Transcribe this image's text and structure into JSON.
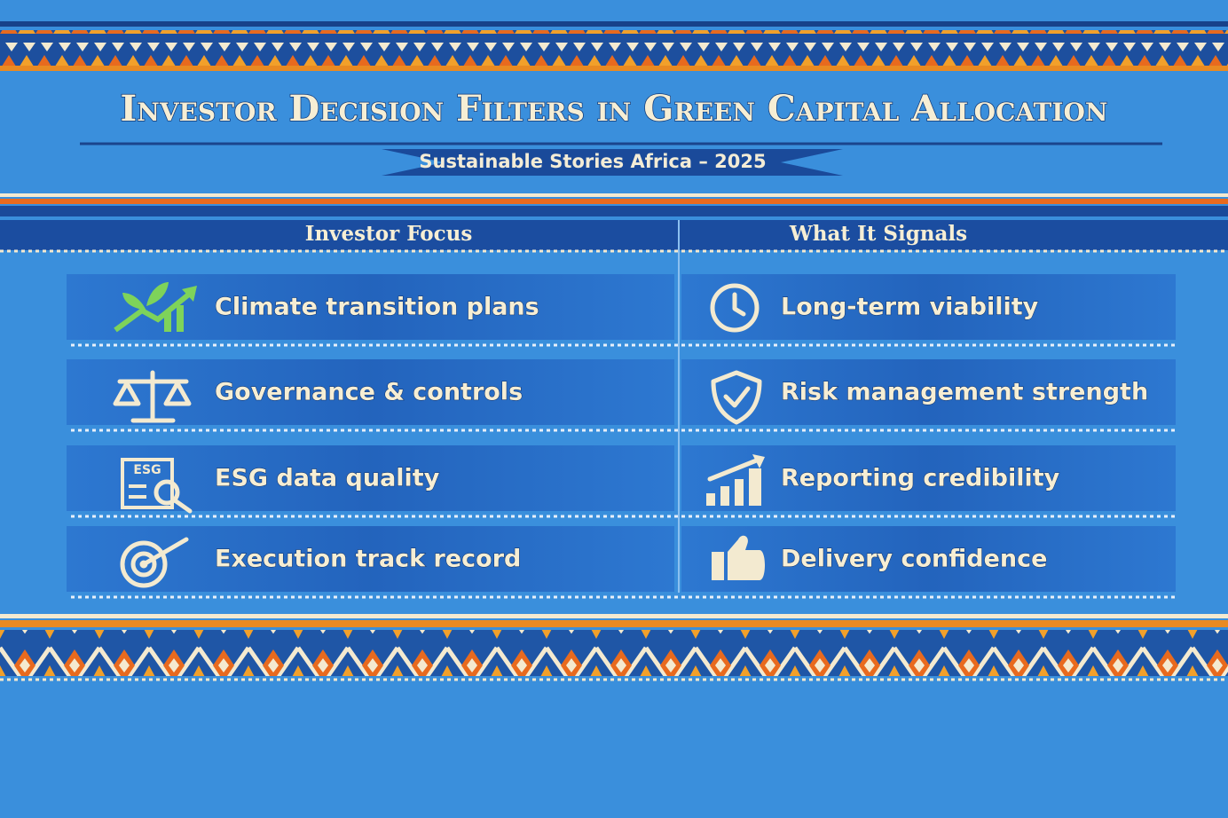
{
  "title": "Investor Decision Filters in Green Capital Allocation",
  "subtitle": "Sustainable Stories Africa – 2025",
  "table": {
    "headers": [
      "Investor Focus",
      "What It Signals"
    ],
    "rows": [
      [
        "Climate transition plans",
        "Long-term viability"
      ],
      [
        "Governance & controls",
        "Risk management strength"
      ],
      [
        "ESG data quality",
        "Reporting credibility"
      ],
      [
        "Execution track record",
        "Delivery confidence"
      ]
    ]
  }
}
